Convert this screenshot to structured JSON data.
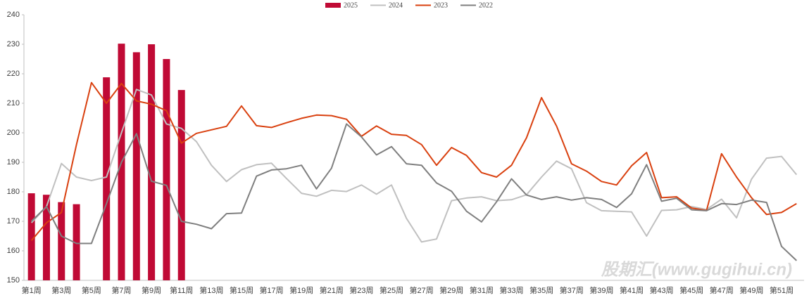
{
  "chart_data": {
    "type": "bar-line",
    "categories": [
      "第1周",
      null,
      "第3周",
      null,
      "第5周",
      null,
      "第7周",
      null,
      "第9周",
      null,
      "第11周",
      null,
      "第13周",
      null,
      "第15周",
      null,
      "第17周",
      null,
      "第19周",
      null,
      "第21周",
      null,
      "第23周",
      null,
      "第25周",
      null,
      "第27周",
      null,
      "第29周",
      null,
      "第31周",
      null,
      "第33周",
      null,
      "第35周",
      null,
      "第37周",
      null,
      "第39周",
      null,
      "第41周",
      null,
      "第43周",
      null,
      "第45周",
      null,
      "第47周",
      null,
      "第49周",
      null,
      "第51周",
      null
    ],
    "series": [
      {
        "name": "2025",
        "type": "bar",
        "color": "#c00a35",
        "values": [
          179.5,
          179,
          176.5,
          175.8,
          null,
          218.8,
          230.2,
          227.3,
          230,
          225,
          214.5,
          null,
          null,
          null,
          null,
          null,
          null,
          null,
          null,
          null,
          null,
          null,
          null,
          null,
          null,
          null,
          null,
          null,
          null,
          null,
          null,
          null,
          null,
          null,
          null,
          null,
          null,
          null,
          null,
          null,
          null,
          null,
          null,
          null,
          null,
          null,
          null,
          null,
          null,
          null,
          null,
          null
        ]
      },
      {
        "name": "2024",
        "type": "line",
        "color": "#c0c0c0",
        "values": [
          169.5,
          175,
          189.6,
          185,
          183.8,
          185,
          200,
          214.7,
          212.8,
          203,
          201.5,
          197,
          189,
          183.5,
          187.5,
          189.2,
          189.7,
          184.5,
          179.5,
          178.5,
          180.5,
          180.1,
          182.3,
          179.2,
          182.3,
          171,
          163,
          164,
          177,
          177.9,
          178.3,
          177,
          177.3,
          179,
          185,
          190.4,
          187.8,
          176.3,
          173.6,
          173.4,
          173.2,
          165,
          173.7,
          173.9,
          175,
          174,
          177.5,
          171.2,
          184.3,
          191.4,
          192,
          185.8
        ]
      },
      {
        "name": "2023",
        "type": "line",
        "color": "#d9400f",
        "values": [
          163.5,
          169.5,
          173,
          196,
          217,
          210,
          216.7,
          210.8,
          209.7,
          207.5,
          196.5,
          199.8,
          201,
          202.2,
          209.1,
          202.4,
          201.8,
          203.4,
          204.9,
          206,
          205.8,
          204.6,
          198.8,
          202.3,
          199.5,
          199.1,
          196,
          189,
          195,
          192.3,
          186.5,
          185,
          189,
          198.3,
          211.9,
          202.3,
          189.5,
          187,
          183.5,
          182.3,
          188.8,
          193.3,
          178,
          178.3,
          174.5,
          173.7,
          192.9,
          185,
          178,
          172.3,
          173,
          176
        ]
      },
      {
        "name": "2022",
        "type": "line",
        "color": "#7f7f7f",
        "values": [
          170,
          175,
          165,
          162.5,
          162.5,
          176,
          190,
          199.7,
          183.6,
          182.2,
          170,
          169,
          167.5,
          172.6,
          172.8,
          185.3,
          187.4,
          187.8,
          189,
          181,
          188,
          203,
          198.6,
          192.5,
          195.3,
          189.5,
          189,
          183,
          180.2,
          173.4,
          169.8,
          176.6,
          184.4,
          178.9,
          177.4,
          178.3,
          177.2,
          178,
          177.4,
          174.7,
          179.3,
          189.2,
          176.8,
          177.8,
          173.9,
          173.6,
          176,
          175.7,
          177.2,
          176.4,
          161.5,
          156.7
        ]
      }
    ],
    "ylim": [
      150,
      240
    ],
    "yticks": [
      150,
      160,
      170,
      180,
      190,
      200,
      210,
      220,
      230,
      240
    ],
    "grid": false,
    "legend": "top",
    "watermark": "股期汇(www.gugihui.cn)"
  }
}
